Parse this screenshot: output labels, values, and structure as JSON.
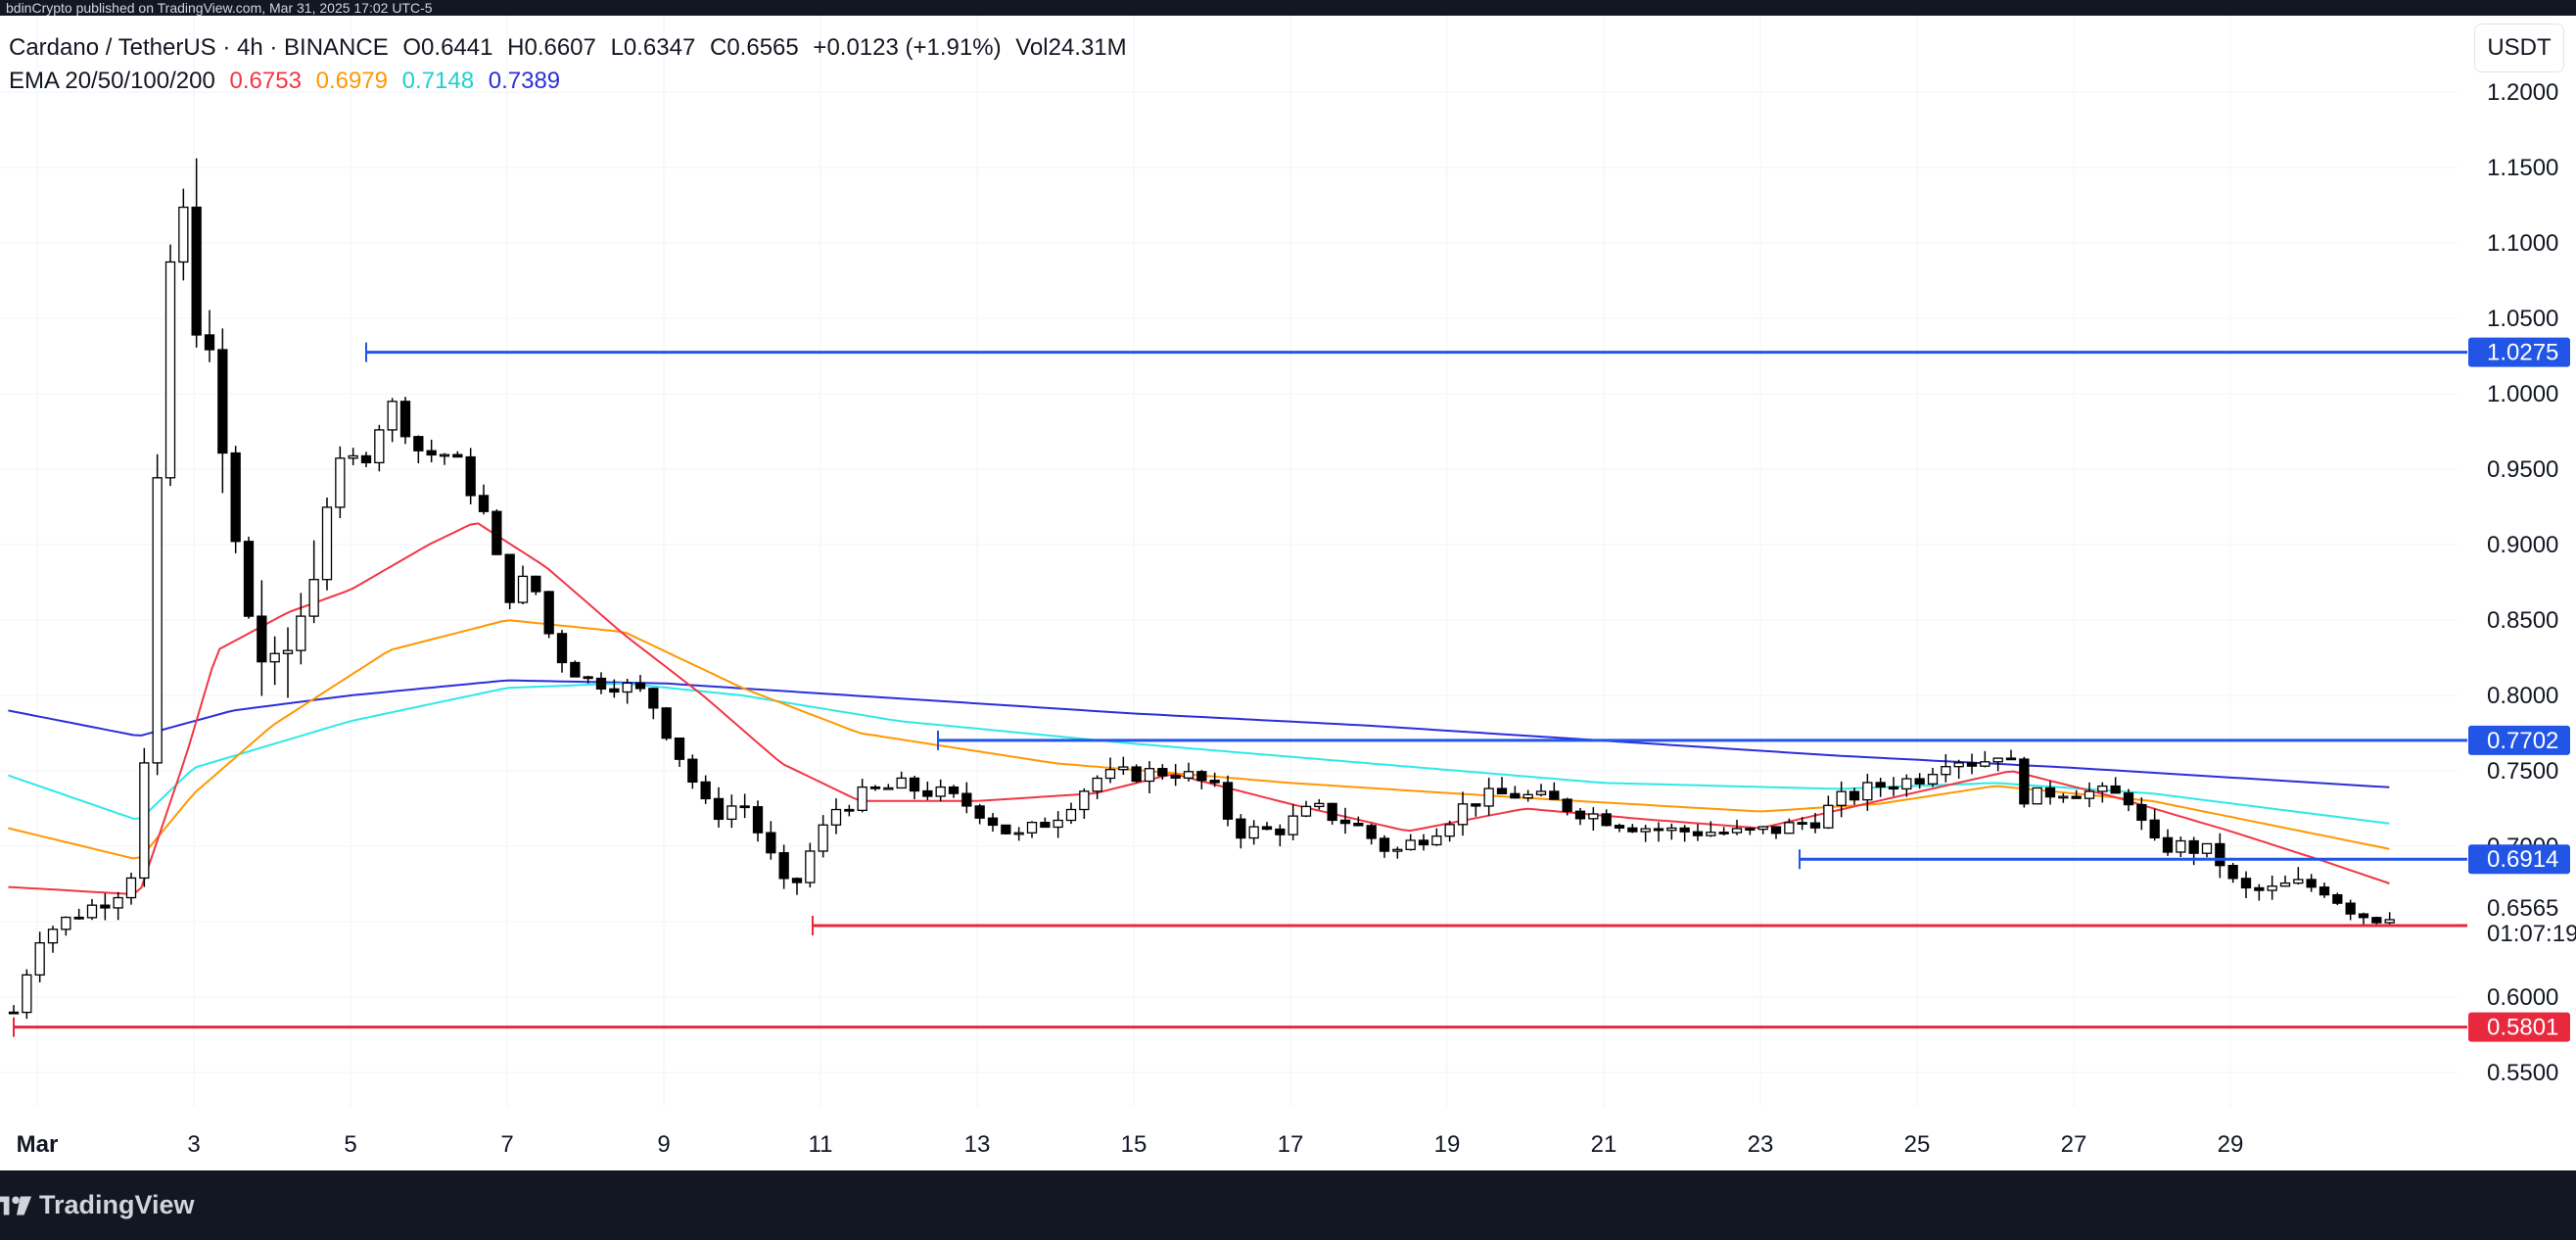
{
  "header": {
    "published_text": "bdinCrypto published on TradingView.com, Mar 31, 2025 17:02 UTC-5"
  },
  "legend": {
    "symbol": "Cardano / TetherUS · 4h · BINANCE",
    "open": "O0.6441",
    "high": "H0.6607",
    "low": "L0.6347",
    "close": "C0.6565",
    "change": "+0.0123 (+1.91%)",
    "volume": "Vol24.31M",
    "ema_label": "EMA 20/50/100/200",
    "ema_values": [
      "0.6753",
      "0.6979",
      "0.7148",
      "0.7389"
    ]
  },
  "currency": "USDT",
  "brand": {
    "name": "TradingView"
  },
  "colors": {
    "up": "#ffffff",
    "down": "#000000",
    "candle_border": "#000000",
    "ema20": "#f23645",
    "ema50": "#ff9800",
    "ema100": "#2fe8e8",
    "ema200": "#2b2fd9",
    "support": "#e8283d",
    "resistance": "#2255e6",
    "current_price_bg": "#ffffff"
  },
  "chart_data": {
    "type": "candlestick",
    "timeframe": "4h",
    "ylim": [
      0.52,
      1.22
    ],
    "y_ticks": [
      0.55,
      0.6,
      0.65,
      0.7,
      0.75,
      0.8,
      0.85,
      0.9,
      0.95,
      1.0,
      1.05,
      1.1,
      1.15,
      1.2
    ],
    "y_tick_labels": [
      "0.5500",
      "0.6000",
      "0.6500",
      "0.7000",
      "0.7500",
      "0.8000",
      "0.8500",
      "0.9000",
      "0.9500",
      "1.0000",
      "1.0500",
      "1.1000",
      "1.1500",
      "1.2000"
    ],
    "x_day_range": [
      0.63,
      31.2
    ],
    "x_ticks": [
      {
        "day": 1,
        "label": "Mar"
      },
      {
        "day": 3,
        "label": "3"
      },
      {
        "day": 5,
        "label": "5"
      },
      {
        "day": 7,
        "label": "7"
      },
      {
        "day": 9,
        "label": "9"
      },
      {
        "day": 11,
        "label": "11"
      },
      {
        "day": 13,
        "label": "13"
      },
      {
        "day": 15,
        "label": "15"
      },
      {
        "day": 17,
        "label": "17"
      },
      {
        "day": 19,
        "label": "19"
      },
      {
        "day": 21,
        "label": "21"
      },
      {
        "day": 23,
        "label": "23"
      },
      {
        "day": 25,
        "label": "25"
      },
      {
        "day": 27,
        "label": "27"
      },
      {
        "day": 29,
        "label": "29"
      }
    ],
    "close_points": [
      [
        0.7,
        0.59
      ],
      [
        1.0,
        0.64
      ],
      [
        1.5,
        0.655
      ],
      [
        2.0,
        0.668
      ],
      [
        2.3,
        0.69
      ],
      [
        2.5,
        0.86
      ],
      [
        2.6,
        1.04
      ],
      [
        2.8,
        1.13
      ],
      [
        3.0,
        1.07
      ],
      [
        3.3,
        0.98
      ],
      [
        3.6,
        0.87
      ],
      [
        3.8,
        0.84
      ],
      [
        4.0,
        0.8
      ],
      [
        4.4,
        0.86
      ],
      [
        4.8,
        0.95
      ],
      [
        5.2,
        0.96
      ],
      [
        5.5,
        0.995
      ],
      [
        5.9,
        0.96
      ],
      [
        6.3,
        0.96
      ],
      [
        6.7,
        0.92
      ],
      [
        7.0,
        0.865
      ],
      [
        7.3,
        0.88
      ],
      [
        7.6,
        0.83
      ],
      [
        8.0,
        0.81
      ],
      [
        8.4,
        0.808
      ],
      [
        8.8,
        0.8
      ],
      [
        9.2,
        0.76
      ],
      [
        9.6,
        0.72
      ],
      [
        10.0,
        0.73
      ],
      [
        10.3,
        0.7
      ],
      [
        10.6,
        0.665
      ],
      [
        10.9,
        0.7
      ],
      [
        11.2,
        0.725
      ],
      [
        11.6,
        0.735
      ],
      [
        12.0,
        0.74
      ],
      [
        12.5,
        0.735
      ],
      [
        13.0,
        0.725
      ],
      [
        13.5,
        0.705
      ],
      [
        14.0,
        0.72
      ],
      [
        14.5,
        0.745
      ],
      [
        15.0,
        0.748
      ],
      [
        15.5,
        0.75
      ],
      [
        16.0,
        0.74
      ],
      [
        16.3,
        0.71
      ],
      [
        16.8,
        0.71
      ],
      [
        17.3,
        0.725
      ],
      [
        17.8,
        0.715
      ],
      [
        18.3,
        0.695
      ],
      [
        18.8,
        0.71
      ],
      [
        19.3,
        0.73
      ],
      [
        19.8,
        0.735
      ],
      [
        20.3,
        0.73
      ],
      [
        20.8,
        0.722
      ],
      [
        21.3,
        0.715
      ],
      [
        21.8,
        0.71
      ],
      [
        22.3,
        0.71
      ],
      [
        22.8,
        0.708
      ],
      [
        23.3,
        0.712
      ],
      [
        23.7,
        0.718
      ],
      [
        24.0,
        0.73
      ],
      [
        24.5,
        0.74
      ],
      [
        25.0,
        0.745
      ],
      [
        25.4,
        0.76
      ],
      [
        25.8,
        0.755
      ],
      [
        26.1,
        0.765
      ],
      [
        26.4,
        0.73
      ],
      [
        26.8,
        0.738
      ],
      [
        27.3,
        0.735
      ],
      [
        27.7,
        0.732
      ],
      [
        28.0,
        0.7
      ],
      [
        28.4,
        0.7
      ],
      [
        28.8,
        0.695
      ],
      [
        29.1,
        0.67
      ],
      [
        29.5,
        0.67
      ],
      [
        29.8,
        0.675
      ],
      [
        30.2,
        0.672
      ],
      [
        30.5,
        0.66
      ],
      [
        30.8,
        0.652
      ],
      [
        31.05,
        0.6565
      ]
    ],
    "ema200": [
      [
        0.63,
        0.79
      ],
      [
        2.3,
        0.773
      ],
      [
        3.5,
        0.79
      ],
      [
        5.0,
        0.8
      ],
      [
        7.0,
        0.81
      ],
      [
        9.0,
        0.808
      ],
      [
        12.0,
        0.798
      ],
      [
        15.0,
        0.788
      ],
      [
        18.0,
        0.78
      ],
      [
        21.0,
        0.77
      ],
      [
        24.0,
        0.76
      ],
      [
        27.0,
        0.752
      ],
      [
        31.05,
        0.739
      ]
    ],
    "ema100": [
      [
        0.63,
        0.747
      ],
      [
        2.3,
        0.717
      ],
      [
        3.0,
        0.752
      ],
      [
        5.0,
        0.783
      ],
      [
        7.0,
        0.805
      ],
      [
        8.5,
        0.808
      ],
      [
        10.0,
        0.8
      ],
      [
        12.0,
        0.783
      ],
      [
        15.0,
        0.768
      ],
      [
        18.0,
        0.755
      ],
      [
        21.0,
        0.742
      ],
      [
        24.0,
        0.738
      ],
      [
        26.0,
        0.742
      ],
      [
        28.0,
        0.735
      ],
      [
        31.05,
        0.715
      ]
    ],
    "ema50": [
      [
        0.63,
        0.712
      ],
      [
        2.3,
        0.691
      ],
      [
        3.0,
        0.735
      ],
      [
        4.0,
        0.78
      ],
      [
        5.5,
        0.83
      ],
      [
        7.0,
        0.85
      ],
      [
        8.5,
        0.842
      ],
      [
        10.0,
        0.805
      ],
      [
        11.5,
        0.775
      ],
      [
        14.0,
        0.755
      ],
      [
        17.0,
        0.742
      ],
      [
        20.0,
        0.732
      ],
      [
        23.0,
        0.723
      ],
      [
        24.5,
        0.728
      ],
      [
        26.0,
        0.74
      ],
      [
        28.0,
        0.73
      ],
      [
        31.05,
        0.698
      ]
    ],
    "ema20": [
      [
        0.63,
        0.673
      ],
      [
        2.3,
        0.668
      ],
      [
        2.9,
        0.76
      ],
      [
        3.3,
        0.83
      ],
      [
        4.2,
        0.855
      ],
      [
        5.0,
        0.87
      ],
      [
        6.0,
        0.9
      ],
      [
        6.6,
        0.915
      ],
      [
        7.5,
        0.885
      ],
      [
        8.5,
        0.84
      ],
      [
        9.5,
        0.8
      ],
      [
        10.5,
        0.755
      ],
      [
        11.5,
        0.73
      ],
      [
        13.0,
        0.73
      ],
      [
        14.5,
        0.735
      ],
      [
        15.5,
        0.748
      ],
      [
        17.0,
        0.728
      ],
      [
        18.5,
        0.71
      ],
      [
        20.0,
        0.725
      ],
      [
        21.5,
        0.718
      ],
      [
        23.0,
        0.712
      ],
      [
        24.5,
        0.73
      ],
      [
        26.2,
        0.75
      ],
      [
        27.5,
        0.733
      ],
      [
        29.0,
        0.71
      ],
      [
        30.2,
        0.69
      ],
      [
        31.05,
        0.675
      ]
    ],
    "levels": [
      {
        "kind": "resistance",
        "price": 1.0275,
        "label": "1.0275",
        "from_day": 5.2
      },
      {
        "kind": "resistance",
        "price": 0.7702,
        "label": "0.7702",
        "from_day": 12.5
      },
      {
        "kind": "resistance",
        "price": 0.6914,
        "label": "0.6914",
        "from_day": 23.5
      },
      {
        "kind": "support",
        "price": 0.6474,
        "label": "0.6474",
        "from_day": 10.9
      },
      {
        "kind": "support",
        "price": 0.5801,
        "label": "0.5801",
        "from_day": 0.7
      }
    ],
    "current_price": {
      "price": 0.6565,
      "label": "0.6565",
      "countdown": "01:07:19"
    }
  }
}
